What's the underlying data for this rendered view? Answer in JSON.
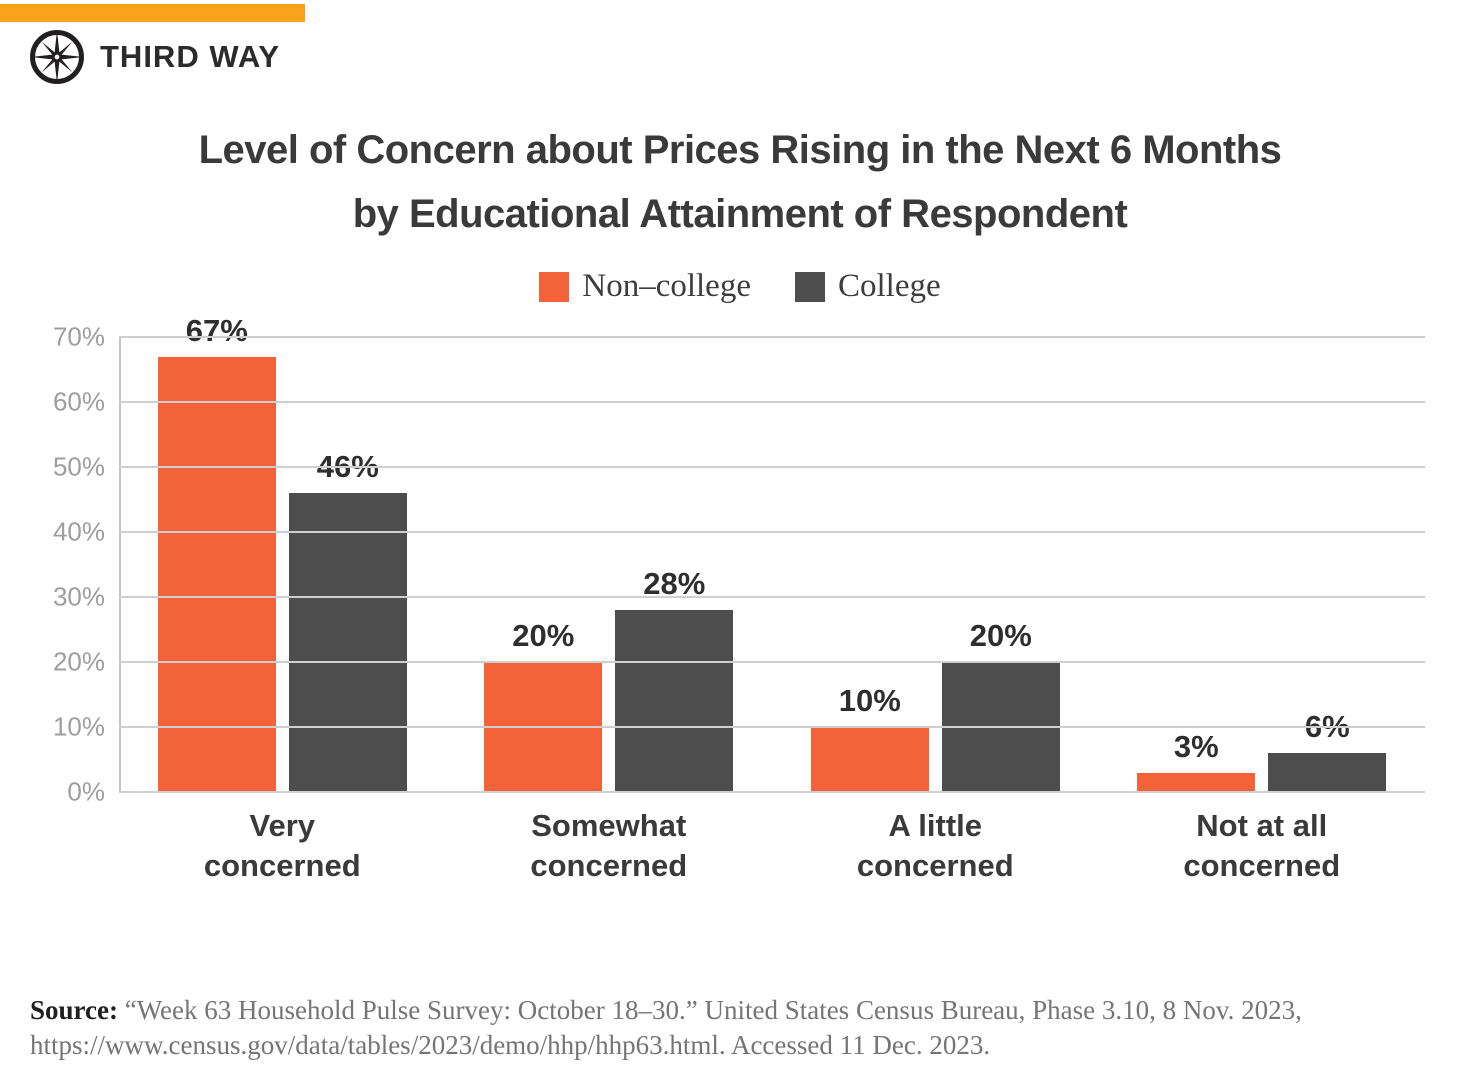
{
  "brand": {
    "name": "THIRD WAY",
    "logo_icon": "compass-icon",
    "topbar_color": "#F9A21B",
    "logo_color": "#231F20"
  },
  "title": {
    "line1": "Level of Concern about Prices Rising in the Next 6 Months",
    "line2": "by Educational Attainment of Respondent"
  },
  "chart_data": {
    "type": "bar",
    "title": "Level of Concern about Prices Rising in the Next 6 Months by Educational Attainment of Respondent",
    "categories": [
      "Very\nconcerned",
      "Somewhat\nconcerned",
      "A little\nconcerned",
      "Not at all\nconcerned"
    ],
    "series": [
      {
        "name": "Non–college",
        "color": "#F4623A",
        "values": [
          67,
          20,
          10,
          3
        ]
      },
      {
        "name": "College",
        "color": "#4D4D4D",
        "values": [
          46,
          28,
          20,
          6
        ]
      }
    ],
    "value_label_format": "{v}%",
    "xlabel": "",
    "ylabel": "",
    "ylim": [
      0,
      70
    ],
    "yticks": [
      "0%",
      "10%",
      "20%",
      "30%",
      "40%",
      "50%",
      "60%",
      "70%"
    ],
    "grid": true,
    "legend_position": "top-center"
  },
  "source": {
    "label": "Source:",
    "line1": "“Week 63 Household Pulse Survey: October 18–30.” United States Census Bureau, Phase 3.10, 8 Nov. 2023,",
    "line2": "https://www.census.gov/data/tables/2023/demo/hhp/hhp63.html. Accessed 11 Dec. 2023."
  }
}
